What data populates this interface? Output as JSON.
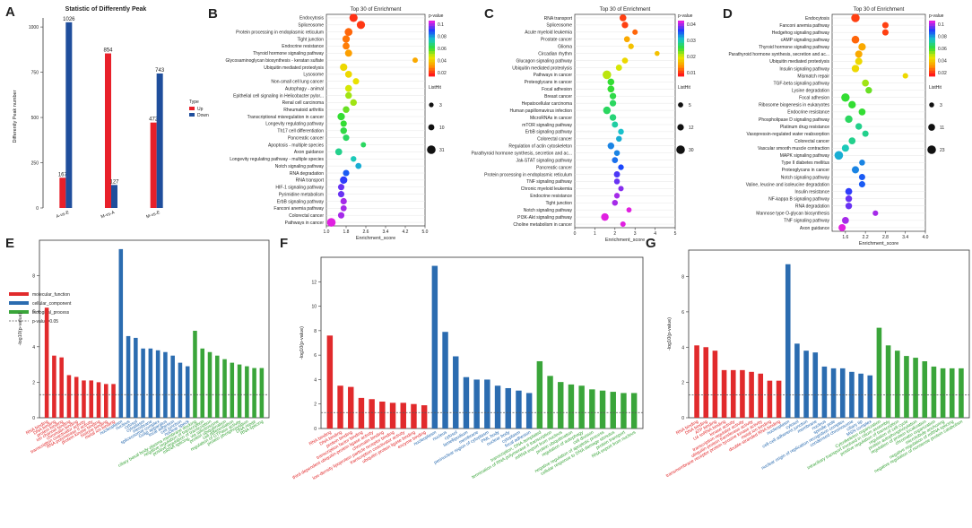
{
  "colors": {
    "up": "#e8202a",
    "down": "#1f4e9c",
    "mf": "#e12a2c",
    "cc": "#2b6cb0",
    "bp": "#3aa53a"
  },
  "panels": {
    "A": "A",
    "B": "B",
    "C": "C",
    "D": "D",
    "E": "E",
    "F": "F",
    "G": "G"
  },
  "chart_data": [
    {
      "id": "A",
      "type": "bar",
      "title": "Statistic of Differently Peak",
      "xlabel": "",
      "ylabel": "Differently Peak number",
      "categories": [
        "A-vs-E",
        "M-vs-A",
        "M-vs-E"
      ],
      "series": [
        {
          "name": "Up",
          "values": [
            167,
            854,
            472
          ]
        },
        {
          "name": "Down",
          "values": [
            1026,
            127,
            743
          ]
        }
      ],
      "ylim": [
        0,
        1050
      ],
      "yticks": [
        "0",
        "250",
        "500",
        "750",
        "1000"
      ],
      "legend_title": "Type"
    },
    {
      "id": "B",
      "type": "scatter",
      "title": "Top 30 of Enrichment",
      "xlabel": "Enrichment_score",
      "xticks": [
        "1.0",
        "1.8",
        "2.6",
        "3.4",
        "4.2",
        "5.0"
      ],
      "xlim": [
        1.0,
        5.0
      ],
      "colorbar_title": "p-value",
      "colorbar_ticks": [
        "0.1",
        "0.08",
        "0.06",
        "0.04",
        "0.02"
      ],
      "size_title": "ListHit",
      "size_ticks": [
        "3",
        "10",
        "31"
      ],
      "terms": [
        "Endocytosis",
        "Spliceosome",
        "Protein processing in endoplasmic reticulum",
        "Tight junction",
        "Endocrine resistance",
        "Thyroid hormone signaling pathway",
        "Glycosaminoglycan biosynthesis - keratan sulfate",
        "Ubiquitin mediated proteolysis",
        "Lysosome",
        "Non-small cell lung cancer",
        "Autophagy - animal",
        "Epithelial cell signaling in Helicobacter pylor...",
        "Renal cell carcinoma",
        "Rheumatoid arthritis",
        "Transcriptional misregulation in cancer",
        "Longevity regulating pathway",
        "Th17 cell differentiation",
        "Pancreatic cancer",
        "Apoptosis - multiple species",
        "Axon guidance",
        "Longevity regulating pathway - multiple species",
        "Notch signaling pathway",
        "RNA degradation",
        "RNA transport",
        "HIF-1 signaling pathway",
        "Pyrimidine metabolism",
        "ErbB signaling pathway",
        "Fanconi anemia pathway",
        "Colorectal cancer",
        "Pathways in cancer"
      ],
      "x": [
        2.1,
        2.4,
        1.9,
        1.8,
        1.8,
        1.9,
        4.6,
        1.7,
        1.9,
        2.2,
        1.9,
        1.9,
        2.1,
        1.8,
        1.6,
        1.7,
        1.7,
        1.8,
        2.5,
        1.5,
        2.1,
        2.3,
        1.8,
        1.7,
        1.6,
        1.6,
        1.7,
        1.7,
        1.6,
        1.2
      ],
      "pvalue": [
        0.003,
        0.004,
        0.01,
        0.012,
        0.013,
        0.018,
        0.02,
        0.03,
        0.03,
        0.032,
        0.035,
        0.04,
        0.04,
        0.045,
        0.05,
        0.05,
        0.052,
        0.055,
        0.055,
        0.06,
        0.065,
        0.07,
        0.08,
        0.085,
        0.09,
        0.09,
        0.095,
        0.095,
        0.095,
        0.1
      ],
      "listhit": [
        14,
        14,
        12,
        10,
        8,
        9,
        3,
        10,
        8,
        6,
        8,
        7,
        7,
        7,
        10,
        6,
        7,
        6,
        3,
        8,
        4,
        5,
        6,
        10,
        6,
        6,
        6,
        5,
        6,
        16
      ]
    },
    {
      "id": "C",
      "type": "scatter",
      "title": "Top 30 of Enrichment",
      "xlabel": "Enrichment_score",
      "xticks": [
        "0",
        "1",
        "2",
        "3",
        "4",
        "5"
      ],
      "xlim": [
        0,
        5
      ],
      "colorbar_title": "p-value",
      "colorbar_ticks": [
        "0.04",
        "0.03",
        "0.02",
        "0.01"
      ],
      "size_title": "ListHit",
      "size_ticks": [
        "5",
        "12",
        "30"
      ],
      "terms": [
        "RNA transport",
        "Spliceosome",
        "Acute myeloid leukemia",
        "Prostate cancer",
        "Glioma",
        "Circadian rhythm",
        "Glucagon signaling pathway",
        "Ubiquitin mediated proteolysis",
        "Pathways in cancer",
        "Proteoglycans in cancer",
        "Focal adhesion",
        "Breast cancer",
        "Hepatocellular carcinoma",
        "Human papillomavirus infection",
        "MicroRNAs in cancer",
        "mTOR signaling pathway",
        "ErbB signaling pathway",
        "Colorectal cancer",
        "Regulation of actin cytoskeleton",
        "Parathyroid hormone synthesis, secretion and ac...",
        "Jak-STAT signaling pathway",
        "Pancreatic cancer",
        "Protein processing in endoplasmic reticulum",
        "TNF signaling pathway",
        "Chronic myeloid leukemia",
        "Endocrine resistance",
        "Tight junction",
        "Notch signaling pathway",
        "PI3K-Akt signaling pathway",
        "Choline metabolism in cancer"
      ],
      "x": [
        2.4,
        2.5,
        3.0,
        2.6,
        2.8,
        4.1,
        2.5,
        2.2,
        1.6,
        1.8,
        1.8,
        1.9,
        1.9,
        1.6,
        1.9,
        2.0,
        2.3,
        2.2,
        1.8,
        2.1,
        2.0,
        2.3,
        2.1,
        2.1,
        2.3,
        2.1,
        2.0,
        2.7,
        1.5,
        2.4
      ],
      "pvalue": [
        0.002,
        0.002,
        0.004,
        0.008,
        0.01,
        0.01,
        0.012,
        0.014,
        0.015,
        0.02,
        0.02,
        0.021,
        0.022,
        0.022,
        0.023,
        0.025,
        0.027,
        0.028,
        0.03,
        0.03,
        0.031,
        0.033,
        0.035,
        0.036,
        0.037,
        0.038,
        0.038,
        0.04,
        0.04,
        0.04
      ],
      "listhit": [
        14,
        12,
        6,
        9,
        7,
        4,
        9,
        10,
        30,
        14,
        15,
        12,
        12,
        20,
        13,
        10,
        8,
        8,
        13,
        8,
        9,
        7,
        10,
        8,
        6,
        7,
        8,
        5,
        20,
        6
      ]
    },
    {
      "id": "D",
      "type": "scatter",
      "title": "Top 30 of Enrichment",
      "xlabel": "Enrichment_score",
      "xticks": [
        "1.6",
        "2.2",
        "2.8",
        "3.4",
        "4.0"
      ],
      "xlim": [
        1.2,
        4.0
      ],
      "colorbar_title": "p-value",
      "colorbar_ticks": [
        "0.1",
        "0.08",
        "0.06",
        "0.04",
        "0.02"
      ],
      "size_title": "ListHit",
      "size_ticks": [
        "3",
        "11",
        "23"
      ],
      "terms": [
        "Endocytosis",
        "Fanconi anemia pathway",
        "Hedgehog signaling pathway",
        "cAMP signaling pathway",
        "Thyroid hormone signaling pathway",
        "Parathyroid hormone synthesis, secretion and ac...",
        "Ubiquitin mediated proteolysis",
        "Insulin signaling pathway",
        "Mismatch repair",
        "TGF-beta signaling pathway",
        "Lysine degradation",
        "Focal adhesion",
        "Ribosome biogenesis in eukaryotes",
        "Endocrine resistance",
        "Phospholipase D signaling pathway",
        "Platinum drug resistance",
        "Vasopressin-regulated water reabsorption",
        "Colorectal cancer",
        "Vascular smooth muscle contraction",
        "MAPK signaling pathway",
        "Type II diabetes mellitus",
        "Proteoglycans in cancer",
        "Notch signaling pathway",
        "Valine, leucine and isoleucine degradation",
        "Insulin resistance",
        "NF-kappa B signaling pathway",
        "RNA degradation",
        "Mannose type O-glycan biosynthesis",
        "TNF signaling pathway",
        "Axon guidance"
      ],
      "x": [
        1.9,
        2.8,
        2.8,
        1.9,
        2.1,
        2.0,
        2.0,
        1.9,
        3.4,
        2.2,
        2.3,
        1.6,
        1.8,
        2.1,
        1.7,
        2.0,
        2.2,
        1.8,
        1.6,
        1.4,
        2.1,
        1.9,
        2.1,
        2.1,
        1.7,
        1.7,
        1.7,
        2.5,
        1.6,
        1.5
      ],
      "pvalue": [
        0.005,
        0.005,
        0.005,
        0.01,
        0.02,
        0.02,
        0.03,
        0.03,
        0.03,
        0.04,
        0.045,
        0.05,
        0.05,
        0.05,
        0.055,
        0.06,
        0.06,
        0.06,
        0.065,
        0.07,
        0.075,
        0.075,
        0.08,
        0.08,
        0.085,
        0.09,
        0.09,
        0.095,
        0.095,
        0.1
      ],
      "listhit": [
        13,
        5,
        5,
        10,
        9,
        8,
        8,
        9,
        3,
        7,
        6,
        13,
        9,
        7,
        9,
        6,
        5,
        7,
        8,
        14,
        4,
        8,
        5,
        5,
        7,
        6,
        6,
        3,
        7,
        8
      ]
    },
    {
      "id": "E",
      "type": "bar",
      "xlabel": "",
      "ylabel": "-log10(p-value)",
      "ylim": [
        0,
        10
      ],
      "yticks": [
        "0",
        "2",
        "4",
        "6",
        "8"
      ],
      "threshold": 1.301,
      "legend": [
        "molecular_function",
        "cellular_component",
        "biological_process",
        "p-value=0.05"
      ],
      "categories": [
        "RNA binding",
        "DNA binding",
        "protein binding",
        "ion channel binding",
        "chromatin binding",
        "transcription coactivator activity",
        "RNA polymerase II activity",
        "protein kinase binding",
        "histone binding",
        "metal ion binding",
        "nucleoplasm",
        "nucleus",
        "cytosol",
        "cytoplasm",
        "membrane",
        "spliceosomal complex",
        "Golgi apparatus",
        "focal adhesion",
        "cell junction",
        "nuclear speck",
        "ciliary basal body-plasma membrane docking",
        "negative regulation of transcription",
        "positive regulation of transcription",
        "mRNA splicing, via spliceosome",
        "protein ubiquitination",
        "cell differentiation",
        "regulation of GTPase activity",
        "protein phosphorylation",
        "DNA repair",
        "RNA splicing"
      ],
      "groups": [
        "mf",
        "mf",
        "mf",
        "mf",
        "mf",
        "mf",
        "mf",
        "mf",
        "mf",
        "mf",
        "cc",
        "cc",
        "cc",
        "cc",
        "cc",
        "cc",
        "cc",
        "cc",
        "cc",
        "cc",
        "bp",
        "bp",
        "bp",
        "bp",
        "bp",
        "bp",
        "bp",
        "bp",
        "bp",
        "bp"
      ],
      "values": [
        6.2,
        3.5,
        3.4,
        2.4,
        2.3,
        2.1,
        2.1,
        2.0,
        1.9,
        1.9,
        9.5,
        4.6,
        4.5,
        3.9,
        3.9,
        3.8,
        3.7,
        3.5,
        3.1,
        2.9,
        4.9,
        3.9,
        3.7,
        3.5,
        3.3,
        3.1,
        3.0,
        2.9,
        2.8,
        2.8
      ]
    },
    {
      "id": "F",
      "type": "bar",
      "xlabel": "",
      "ylabel": "-log10(p-value)",
      "ylim": [
        0,
        14
      ],
      "yticks": [
        "0",
        "2",
        "4",
        "6",
        "8",
        "10",
        "12"
      ],
      "threshold": 1.301,
      "categories": [
        "RNA binding",
        "DNA binding",
        "protein binding",
        "transcription factor binding",
        "third-dependent ubiquitin-protein ligase activity",
        "chromatin binding",
        "low-density lipoprotein particle receptor binding",
        "transcription coactivator activity",
        "ubiquitin protein ligase binding",
        "enzyme binding",
        "nucleoplasm",
        "nucleus",
        "cytosol",
        "lamellipodium",
        "membrane",
        "perinuclear region of cytoplasm",
        "PML body",
        "nuclear body",
        "cytoplasm",
        "focal adhesion",
        "transcription, DNA-templated",
        "termination of RNA polymerase II transcription",
        "mRNA export from nucleus",
        "protein ubiquitination",
        "regulation of autophagy",
        "cell division",
        "negative regulation of apoptotic process",
        "cellular response to DNA damage stimulus",
        "protein transport",
        "RNA export from nucleus"
      ],
      "groups": [
        "mf",
        "mf",
        "mf",
        "mf",
        "mf",
        "mf",
        "mf",
        "mf",
        "mf",
        "mf",
        "cc",
        "cc",
        "cc",
        "cc",
        "cc",
        "cc",
        "cc",
        "cc",
        "cc",
        "cc",
        "bp",
        "bp",
        "bp",
        "bp",
        "bp",
        "bp",
        "bp",
        "bp",
        "bp",
        "bp"
      ],
      "values": [
        7.6,
        3.5,
        3.4,
        2.5,
        2.4,
        2.2,
        2.1,
        2.1,
        2.0,
        1.9,
        13.3,
        7.9,
        5.9,
        4.2,
        4.0,
        4.0,
        3.5,
        3.3,
        3.1,
        2.9,
        5.5,
        4.3,
        3.8,
        3.6,
        3.5,
        3.2,
        3.1,
        3.0,
        2.9,
        2.9
      ]
    },
    {
      "id": "G",
      "type": "bar",
      "xlabel": "",
      "ylabel": "-log10(p-value)",
      "ylim": [
        0,
        9.5
      ],
      "yticks": [
        "0",
        "2",
        "4",
        "6",
        "8"
      ],
      "threshold": 1.301,
      "categories": [
        "RNA binding",
        "DNA binding",
        "ATP binding",
        "U4 snRNA binding",
        "kinase activity",
        "transcription regulator activity",
        "ubiquitin-protein transferase activity",
        "transmembrane receptor protein tyrosine kinase activity",
        "metal ion binding",
        "double-stranded RNA binding",
        "nucleoplasm",
        "cytosol",
        "cell-cell adherens junction",
        "membrane",
        "nucleus",
        "spindle pole",
        "nuclear origin of replication recognition complex",
        "condensed chromosome",
        "ciliary tip",
        "MSN complex",
        "Cytoskeleton organization",
        "intraciliary transport involved in cilium assembly",
        "positive regulation of transcription",
        "regulation of cell cycle",
        "protein autophosphorylation",
        "regulation of protein localization",
        "chromatin organization",
        "microtubule anchoring",
        "negative regulation of mRNA splicing",
        "negative regulation of nonsense protein catabolism"
      ],
      "groups": [
        "mf",
        "mf",
        "mf",
        "mf",
        "mf",
        "mf",
        "mf",
        "mf",
        "mf",
        "mf",
        "cc",
        "cc",
        "cc",
        "cc",
        "cc",
        "cc",
        "cc",
        "cc",
        "cc",
        "cc",
        "bp",
        "bp",
        "bp",
        "bp",
        "bp",
        "bp",
        "bp",
        "bp",
        "bp",
        "bp"
      ],
      "values": [
        4.1,
        4.0,
        3.8,
        2.7,
        2.7,
        2.7,
        2.6,
        2.5,
        2.1,
        2.1,
        8.7,
        4.2,
        3.8,
        3.7,
        2.9,
        2.8,
        2.8,
        2.6,
        2.5,
        2.4,
        5.1,
        4.1,
        3.8,
        3.5,
        3.4,
        3.2,
        2.9,
        2.8,
        2.8,
        2.8
      ]
    }
  ]
}
